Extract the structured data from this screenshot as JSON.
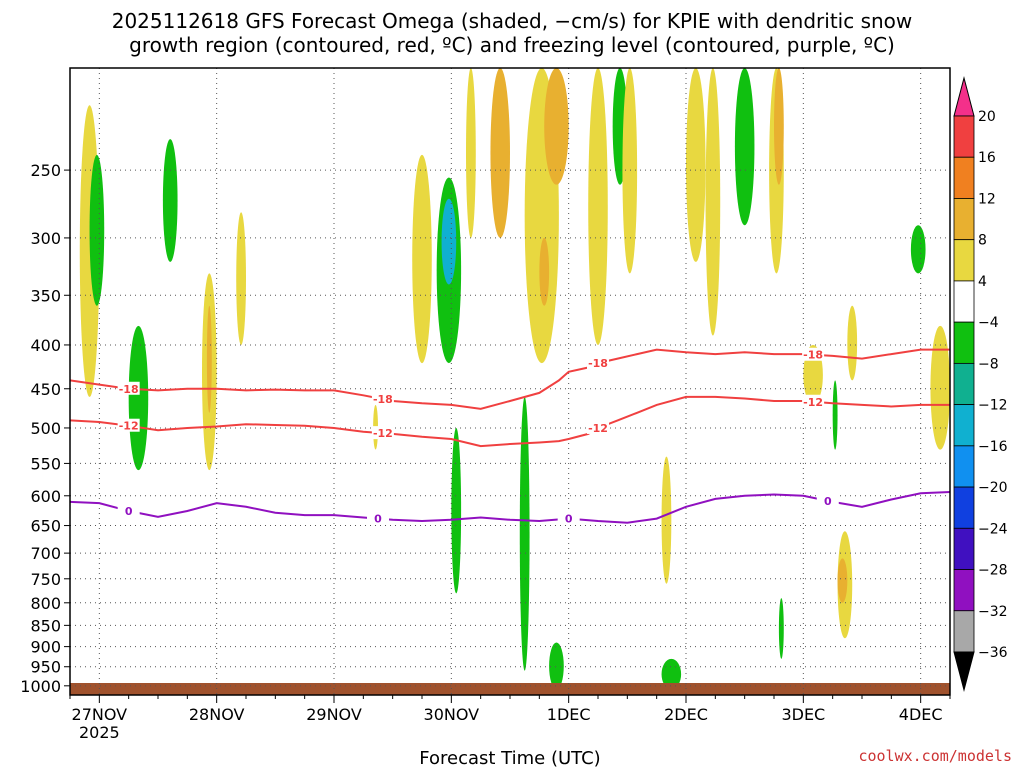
{
  "chart_data": {
    "type": "heatmap",
    "title_line1": "2025112618 GFS Forecast Omega (shaded, −cm/s) for KPIE with dendritic snow",
    "title_line2": "growth region (contoured, red, ºC) and freezing level (contoured, purple, ºC)",
    "xlabel": "Forecast Time (UTC)",
    "credit": "coolwx.com/models",
    "x_ticks": [
      {
        "label": "27NOV",
        "hour": 6,
        "sub": "2025"
      },
      {
        "label": "28NOV",
        "hour": 30
      },
      {
        "label": "29NOV",
        "hour": 54
      },
      {
        "label": "30NOV",
        "hour": 78
      },
      {
        "label": "1DEC",
        "hour": 102
      },
      {
        "label": "2DEC",
        "hour": 126
      },
      {
        "label": "3DEC",
        "hour": 150
      },
      {
        "label": "4DEC",
        "hour": 174
      }
    ],
    "x_range_hours": [
      0,
      180
    ],
    "y_ticks": [
      250,
      300,
      350,
      400,
      450,
      500,
      550,
      600,
      650,
      700,
      750,
      800,
      850,
      900,
      950,
      1000
    ],
    "y_range_hpa": [
      1025,
      190
    ],
    "colorbar": {
      "labels": [
        "20",
        "16",
        "12",
        "8",
        "4",
        "−4",
        "−8",
        "−12",
        "−16",
        "−20",
        "−24",
        "−28",
        "−32",
        "−36"
      ],
      "colors": [
        "#f4308a",
        "#f04040",
        "#f08020",
        "#e8b030",
        "#e8d840",
        "#ffffff",
        "#10c010",
        "#10b090",
        "#10b0d0",
        "#1090f0",
        "#1040e0",
        "#4010c0",
        "#9010c0",
        "#a8a8a8",
        "#000000"
      ]
    },
    "series": [
      {
        "name": "-18",
        "color": "#f04040",
        "hours": [
          0,
          6,
          12,
          18,
          24,
          30,
          36,
          42,
          48,
          54,
          60,
          66,
          72,
          78,
          84,
          90,
          96,
          100,
          102,
          106,
          108,
          112,
          116,
          120,
          126,
          132,
          138,
          144,
          150,
          156,
          162,
          168,
          174,
          180
        ],
        "values": [
          440,
          445,
          450,
          452,
          450,
          450,
          452,
          451,
          452,
          452,
          458,
          465,
          468,
          470,
          475,
          465,
          455,
          440,
          430,
          425,
          420,
          415,
          410,
          405,
          408,
          410,
          408,
          410,
          410,
          412,
          415,
          410,
          405,
          405
        ]
      },
      {
        "name": "-12",
        "color": "#f04040",
        "hours": [
          0,
          6,
          12,
          18,
          24,
          30,
          36,
          42,
          48,
          54,
          60,
          66,
          72,
          78,
          84,
          90,
          96,
          100,
          102,
          106,
          108,
          112,
          116,
          120,
          126,
          132,
          138,
          144,
          150,
          156,
          162,
          168,
          174,
          180
        ],
        "values": [
          490,
          492,
          497,
          503,
          500,
          498,
          495,
          496,
          497,
          500,
          505,
          508,
          512,
          515,
          525,
          522,
          520,
          518,
          515,
          508,
          500,
          490,
          480,
          470,
          460,
          460,
          462,
          465,
          465,
          468,
          470,
          472,
          470,
          470
        ]
      },
      {
        "name": "0",
        "color": "#9010c0",
        "hours": [
          0,
          6,
          12,
          18,
          24,
          30,
          36,
          42,
          48,
          54,
          60,
          66,
          72,
          78,
          84,
          90,
          96,
          102,
          108,
          114,
          120,
          126,
          132,
          138,
          144,
          150,
          156,
          162,
          168,
          174,
          180
        ],
        "values": [
          610,
          612,
          625,
          635,
          625,
          612,
          618,
          628,
          632,
          632,
          636,
          640,
          642,
          640,
          636,
          640,
          642,
          638,
          642,
          645,
          638,
          618,
          605,
          600,
          598,
          600,
          610,
          618,
          606,
          596,
          594
        ]
      }
    ],
    "shaded_regions": [
      {
        "hours": [
          2,
          6
        ],
        "p": [
          210,
          460
        ],
        "value": 6
      },
      {
        "hours": [
          4,
          7
        ],
        "p": [
          240,
          360
        ],
        "value": -6
      },
      {
        "hours": [
          12,
          16
        ],
        "p": [
          380,
          560
        ],
        "value": -6
      },
      {
        "hours": [
          19,
          22
        ],
        "p": [
          230,
          320
        ],
        "value": -6
      },
      {
        "hours": [
          27,
          30
        ],
        "p": [
          330,
          560
        ],
        "value": 6
      },
      {
        "hours": [
          28,
          29
        ],
        "p": [
          360,
          480
        ],
        "value": 10
      },
      {
        "hours": [
          34,
          36
        ],
        "p": [
          280,
          400
        ],
        "value": 6
      },
      {
        "hours": [
          62,
          63
        ],
        "p": [
          470,
          530
        ],
        "value": 6
      },
      {
        "hours": [
          70,
          74
        ],
        "p": [
          240,
          420
        ],
        "value": 6
      },
      {
        "hours": [
          75,
          80
        ],
        "p": [
          255,
          420
        ],
        "value": -6
      },
      {
        "hours": [
          76,
          79
        ],
        "p": [
          270,
          340
        ],
        "value": -13
      },
      {
        "hours": [
          78,
          80
        ],
        "p": [
          500,
          780
        ],
        "value": -6
      },
      {
        "hours": [
          81,
          83
        ],
        "p": [
          190,
          300
        ],
        "value": 6
      },
      {
        "hours": [
          86,
          90
        ],
        "p": [
          190,
          300
        ],
        "value": 10
      },
      {
        "hours": [
          92,
          94
        ],
        "p": [
          460,
          960
        ],
        "value": -6
      },
      {
        "hours": [
          93,
          100
        ],
        "p": [
          190,
          420
        ],
        "value": 6
      },
      {
        "hours": [
          96,
          98
        ],
        "p": [
          300,
          360
        ],
        "value": 10
      },
      {
        "hours": [
          97,
          102
        ],
        "p": [
          190,
          260
        ],
        "value": 10
      },
      {
        "hours": [
          98,
          101
        ],
        "p": [
          890,
          1010
        ],
        "value": -6
      },
      {
        "hours": [
          106,
          110
        ],
        "p": [
          190,
          400
        ],
        "value": 6
      },
      {
        "hours": [
          111,
          114
        ],
        "p": [
          190,
          260
        ],
        "value": -6
      },
      {
        "hours": [
          113,
          116
        ],
        "p": [
          190,
          330
        ],
        "value": 6
      },
      {
        "hours": [
          121,
          123
        ],
        "p": [
          540,
          760
        ],
        "value": 6
      },
      {
        "hours": [
          121,
          125
        ],
        "p": [
          930,
          1010
        ],
        "value": -6
      },
      {
        "hours": [
          126,
          130
        ],
        "p": [
          190,
          320
        ],
        "value": 6
      },
      {
        "hours": [
          130,
          133
        ],
        "p": [
          190,
          390
        ],
        "value": 6
      },
      {
        "hours": [
          136,
          140
        ],
        "p": [
          190,
          290
        ],
        "value": -6
      },
      {
        "hours": [
          143,
          146
        ],
        "p": [
          190,
          330
        ],
        "value": 6
      },
      {
        "hours": [
          144,
          146
        ],
        "p": [
          190,
          260
        ],
        "value": 10
      },
      {
        "hours": [
          145,
          146
        ],
        "p": [
          790,
          930
        ],
        "value": -6
      },
      {
        "hours": [
          150,
          154
        ],
        "p": [
          400,
          470
        ],
        "value": 6
      },
      {
        "hours": [
          156,
          157
        ],
        "p": [
          440,
          530
        ],
        "value": -6
      },
      {
        "hours": [
          157,
          160
        ],
        "p": [
          660,
          880
        ],
        "value": 6
      },
      {
        "hours": [
          157,
          159
        ],
        "p": [
          710,
          800
        ],
        "value": 10
      },
      {
        "hours": [
          159,
          161
        ],
        "p": [
          360,
          440
        ],
        "value": 6
      },
      {
        "hours": [
          172,
          175
        ],
        "p": [
          290,
          330
        ],
        "value": -6
      },
      {
        "hours": [
          176,
          180
        ],
        "p": [
          380,
          530
        ],
        "value": 6
      }
    ]
  }
}
